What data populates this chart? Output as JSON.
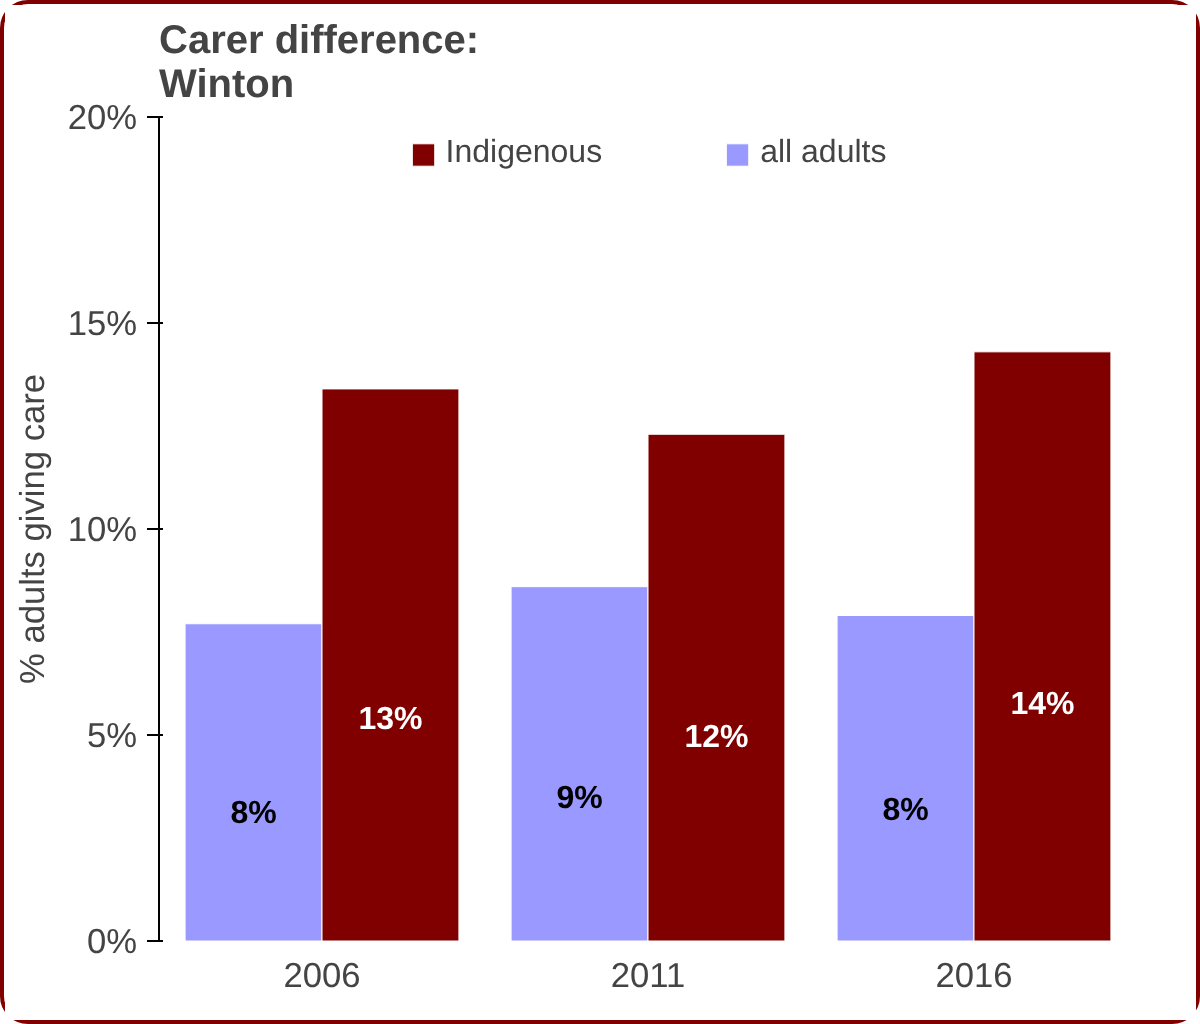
{
  "chart_data": {
    "type": "bar",
    "title": "Carer difference:\n      Winton",
    "ylabel": "% adults giving care",
    "categories": [
      "2006",
      "2011",
      "2016"
    ],
    "series": [
      {
        "name": "all adults",
        "color": "#9999ff",
        "values": [
          7.7,
          8.6,
          7.9
        ],
        "value_labels": [
          "8%",
          "9%",
          "8%"
        ]
      },
      {
        "name": "Indigenous",
        "color": "#800000",
        "values": [
          13.4,
          12.3,
          14.3
        ],
        "value_labels": [
          "13%",
          "12%",
          "14%"
        ]
      }
    ],
    "ylim": [
      0,
      20
    ],
    "yticks": [
      {
        "value": 0,
        "label": "0%"
      },
      {
        "value": 5,
        "label": "5%"
      },
      {
        "value": 10,
        "label": "10%"
      },
      {
        "value": 15,
        "label": "15%"
      },
      {
        "value": 20,
        "label": "20%"
      }
    ],
    "grid": false,
    "legend": "top"
  }
}
